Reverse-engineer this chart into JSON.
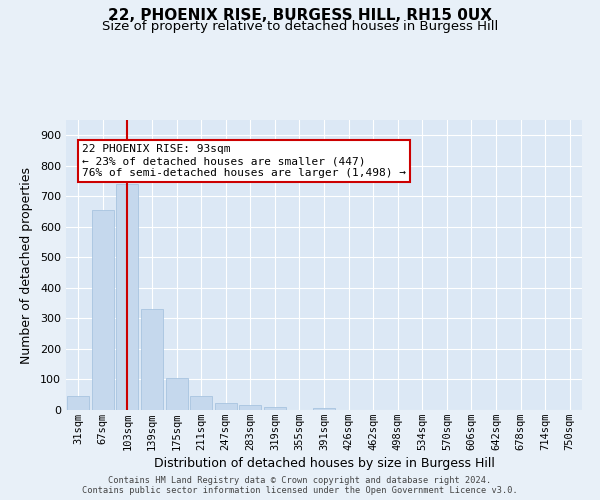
{
  "title": "22, PHOENIX RISE, BURGESS HILL, RH15 0UX",
  "subtitle": "Size of property relative to detached houses in Burgess Hill",
  "xlabel": "Distribution of detached houses by size in Burgess Hill",
  "ylabel": "Number of detached properties",
  "footer_line1": "Contains HM Land Registry data © Crown copyright and database right 2024.",
  "footer_line2": "Contains public sector information licensed under the Open Government Licence v3.0.",
  "categories": [
    "31sqm",
    "67sqm",
    "103sqm",
    "139sqm",
    "175sqm",
    "211sqm",
    "247sqm",
    "283sqm",
    "319sqm",
    "355sqm",
    "391sqm",
    "426sqm",
    "462sqm",
    "498sqm",
    "534sqm",
    "570sqm",
    "606sqm",
    "642sqm",
    "678sqm",
    "714sqm",
    "750sqm"
  ],
  "values": [
    47,
    655,
    740,
    330,
    105,
    47,
    22,
    15,
    10,
    0,
    5,
    0,
    0,
    0,
    0,
    0,
    0,
    0,
    0,
    0,
    0
  ],
  "bar_color": "#c5d8ed",
  "bar_edge_color": "#a8c4e0",
  "background_color": "#e8f0f8",
  "plot_bg_color": "#dce8f5",
  "grid_color": "#ffffff",
  "red_line_index": 2,
  "red_line_color": "#cc0000",
  "annotation_text_line1": "22 PHOENIX RISE: 93sqm",
  "annotation_text_line2": "← 23% of detached houses are smaller (447)",
  "annotation_text_line3": "76% of semi-detached houses are larger (1,498) →",
  "annotation_box_edge_color": "#cc0000",
  "annotation_box_fill": "#ffffff",
  "ylim": [
    0,
    950
  ],
  "yticks": [
    0,
    100,
    200,
    300,
    400,
    500,
    600,
    700,
    800,
    900
  ],
  "title_fontsize": 11,
  "subtitle_fontsize": 9.5,
  "xlabel_fontsize": 9,
  "ylabel_fontsize": 9,
  "tick_fontsize": 8,
  "xtick_fontsize": 7.5,
  "annotation_fontsize": 8
}
